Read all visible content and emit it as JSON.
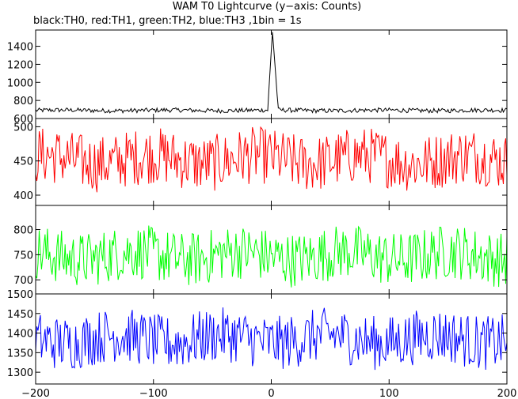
{
  "title": "WAM T0 Lightcurve (y−axis: Counts)",
  "subtitle": "black:TH0, red:TH1, green:TH2, blue:TH3 ,1bin = 1s",
  "chart_data": {
    "type": "line",
    "x_range": [
      -200,
      200
    ],
    "x_ticks": [
      -200,
      -100,
      0,
      100,
      200
    ],
    "x_tick_labels": [
      "−200",
      "−100",
      "0",
      "100",
      "200"
    ],
    "bin_seconds": 1,
    "panels": [
      {
        "series": "TH0",
        "color": "#000000",
        "ylim": [
          600,
          1580
        ],
        "y_ticks": [
          600,
          800,
          1000,
          1200,
          1400
        ],
        "baseline_mean": 690,
        "noise_amplitude": 25,
        "peak": {
          "x": 1,
          "value": 1560,
          "rise_start": -3,
          "decay_end": 6
        }
      },
      {
        "series": "TH1",
        "color": "#ff0000",
        "ylim": [
          385,
          512
        ],
        "y_ticks": [
          400,
          450,
          500
        ],
        "baseline_mean": 452,
        "noise_amplitude": 42
      },
      {
        "series": "TH2",
        "color": "#00ff00",
        "ylim": [
          672,
          848
        ],
        "y_ticks": [
          700,
          750,
          800
        ],
        "baseline_mean": 748,
        "noise_amplitude": 55
      },
      {
        "series": "TH3",
        "color": "#0000ff",
        "ylim": [
          1270,
          1500
        ],
        "y_ticks": [
          1300,
          1350,
          1400,
          1450,
          1500
        ],
        "baseline_mean": 1385,
        "noise_amplitude": 70
      }
    ]
  }
}
